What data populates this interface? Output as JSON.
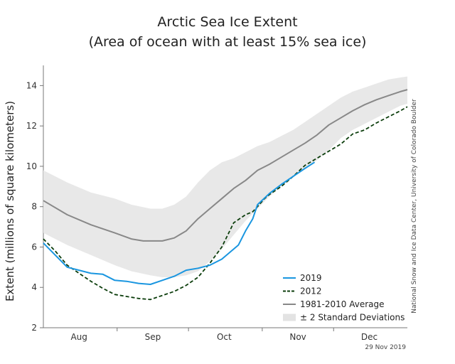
{
  "chart_data": {
    "type": "line",
    "title": "Arctic Sea Ice Extent",
    "subtitle": "(Area of ocean with at least 15% sea ice)",
    "ylabel": "Extent (millions of square kilometers)",
    "xlabel": "",
    "xlim": [
      0,
      153
    ],
    "ylim": [
      2,
      15
    ],
    "yticks": [
      2,
      4,
      6,
      8,
      10,
      12,
      14
    ],
    "xticks": [
      {
        "label": "Aug",
        "x": 15
      },
      {
        "label": "Sep",
        "x": 46
      },
      {
        "label": "Oct",
        "x": 76
      },
      {
        "label": "Nov",
        "x": 107
      },
      {
        "label": "Dec",
        "x": 137
      }
    ],
    "month_boundaries": [
      31,
      61,
      92,
      122
    ],
    "x_unit": "days since Jul 1",
    "grid": false,
    "legend_position": "bottom-right",
    "series": [
      {
        "name": "± 2 Standard Deviations",
        "kind": "band",
        "color": "#e8e8e8",
        "x": [
          0,
          10,
          20,
          30,
          37,
          45,
          50,
          55,
          60,
          65,
          70,
          75,
          80,
          85,
          90,
          95,
          100,
          105,
          110,
          115,
          120,
          125,
          130,
          135,
          140,
          145,
          150,
          153
        ],
        "lower": [
          6.7,
          6.1,
          5.6,
          5.1,
          4.8,
          4.6,
          4.5,
          4.5,
          4.6,
          4.8,
          5.3,
          5.9,
          6.6,
          7.3,
          7.9,
          8.5,
          9.0,
          9.5,
          9.9,
          10.3,
          10.8,
          11.4,
          11.8,
          12.1,
          12.4,
          12.7,
          13.0,
          13.1
        ],
        "upper": [
          9.8,
          9.2,
          8.7,
          8.4,
          8.1,
          7.9,
          7.9,
          8.1,
          8.5,
          9.2,
          9.8,
          10.2,
          10.4,
          10.7,
          11.0,
          11.2,
          11.5,
          11.8,
          12.2,
          12.6,
          13.0,
          13.4,
          13.7,
          13.9,
          14.1,
          14.3,
          14.4,
          14.45
        ]
      },
      {
        "name": "1981-2010 Average",
        "color": "#888888",
        "x": [
          0,
          10,
          20,
          30,
          37,
          42,
          46,
          50,
          55,
          60,
          65,
          70,
          75,
          80,
          85,
          90,
          95,
          100,
          105,
          110,
          115,
          120,
          125,
          130,
          135,
          140,
          145,
          150,
          153
        ],
        "values": [
          8.3,
          7.6,
          7.1,
          6.7,
          6.4,
          6.3,
          6.3,
          6.3,
          6.45,
          6.8,
          7.4,
          7.9,
          8.4,
          8.9,
          9.3,
          9.8,
          10.1,
          10.45,
          10.8,
          11.15,
          11.55,
          12.05,
          12.4,
          12.75,
          13.05,
          13.3,
          13.5,
          13.7,
          13.8
        ]
      },
      {
        "name": "2012",
        "color": "#0b3d0b",
        "dashed": true,
        "x": [
          0,
          5,
          10,
          15,
          20,
          25,
          30,
          35,
          40,
          45,
          50,
          55,
          60,
          65,
          70,
          75,
          80,
          85,
          88,
          90,
          93,
          95,
          100,
          105,
          110,
          115,
          120,
          125,
          130,
          135,
          140,
          145,
          150,
          153
        ],
        "values": [
          6.4,
          5.8,
          5.1,
          4.7,
          4.3,
          3.95,
          3.65,
          3.55,
          3.45,
          3.4,
          3.6,
          3.8,
          4.1,
          4.5,
          5.2,
          6.0,
          7.2,
          7.6,
          7.75,
          8.0,
          8.4,
          8.6,
          9.0,
          9.5,
          10.05,
          10.4,
          10.75,
          11.1,
          11.6,
          11.8,
          12.15,
          12.45,
          12.75,
          12.95
        ]
      },
      {
        "name": "2019",
        "color": "#1a96e0",
        "x": [
          0,
          5,
          10,
          15,
          20,
          25,
          30,
          35,
          40,
          45,
          50,
          55,
          60,
          65,
          70,
          75,
          78,
          82,
          85,
          88,
          90,
          95,
          100,
          105,
          110,
          114
        ],
        "values": [
          6.2,
          5.6,
          5.0,
          4.85,
          4.7,
          4.65,
          4.35,
          4.3,
          4.2,
          4.15,
          4.35,
          4.55,
          4.85,
          4.95,
          5.1,
          5.4,
          5.7,
          6.1,
          6.8,
          7.4,
          8.1,
          8.65,
          9.1,
          9.5,
          9.9,
          10.2
        ]
      }
    ]
  },
  "credit": "National Snow and Ice Data Center, University of Colorado Boulder",
  "date_stamp": "29 Nov 2019"
}
